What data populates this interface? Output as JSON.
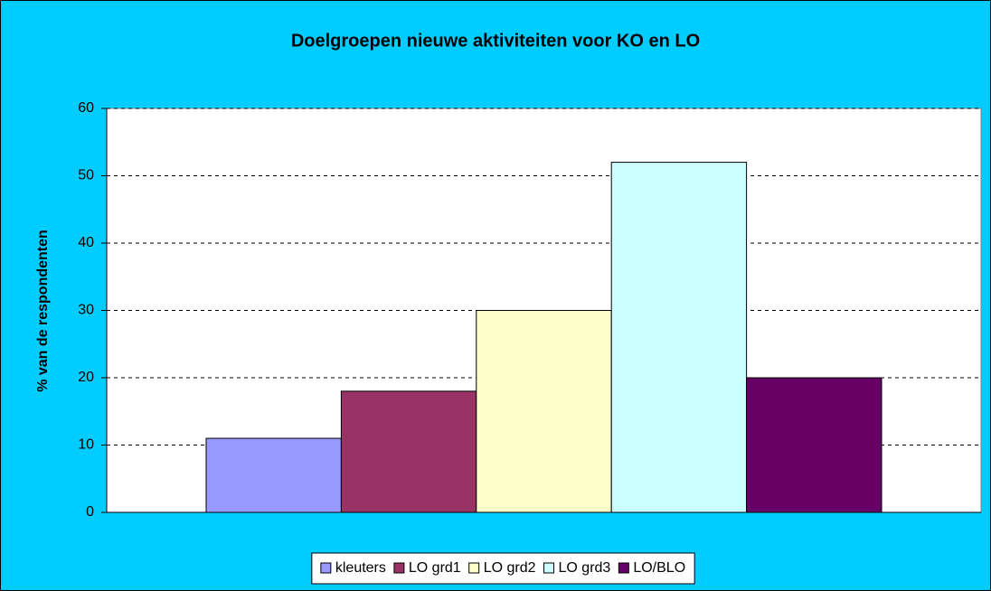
{
  "chart_data": {
    "type": "bar",
    "title": "Doelgroepen nieuwe aktiviteiten voor KO en LO",
    "ylabel": "% van de respondenten",
    "categories": [
      null
    ],
    "series": [
      {
        "name": "kleuters",
        "color": "#9999ff",
        "values": [
          11
        ]
      },
      {
        "name": "LO grd1",
        "color": "#993366",
        "values": [
          18
        ]
      },
      {
        "name": "LO grd2",
        "color": "#ffffcc",
        "values": [
          30
        ]
      },
      {
        "name": "LO grd3",
        "color": "#ccffff",
        "values": [
          52
        ]
      },
      {
        "name": "LO/BLO",
        "color": "#660066",
        "values": [
          20
        ]
      }
    ],
    "ylim": [
      0,
      60
    ],
    "yticks": [
      0,
      10,
      20,
      30,
      40,
      50,
      60
    ],
    "grid": true,
    "legend": "bottom"
  }
}
